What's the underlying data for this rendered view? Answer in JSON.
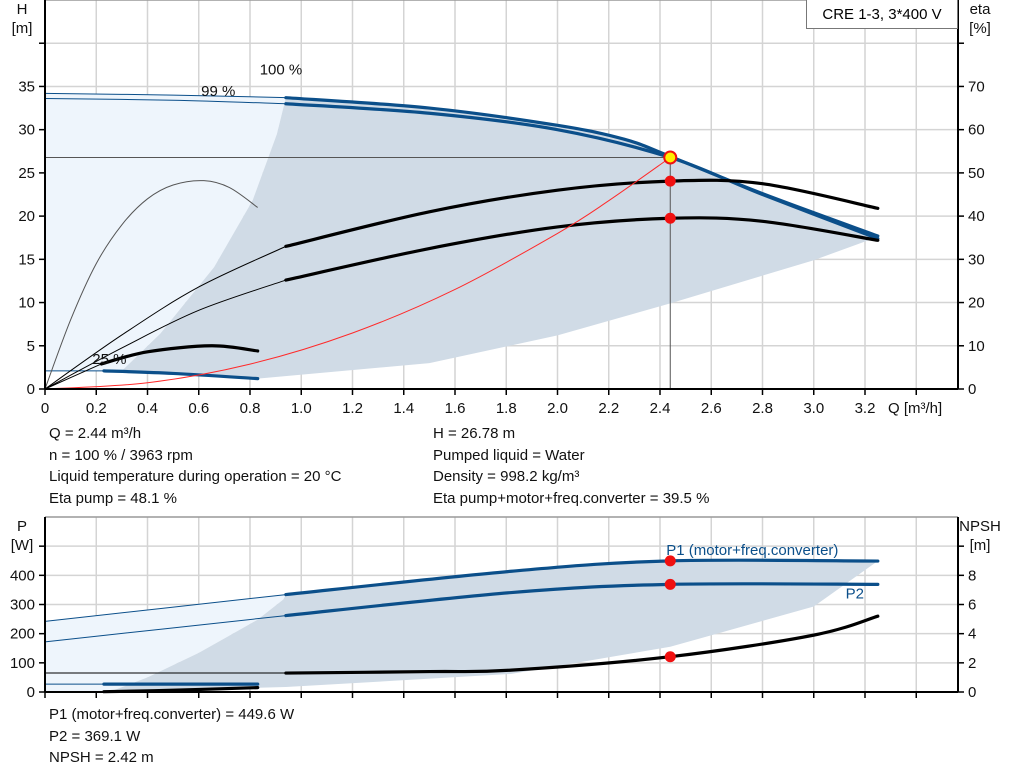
{
  "title": "CRE 1-3, 3*400 V",
  "colors": {
    "curve_blue": "#0b4f8a",
    "region_grey": "#d0dbe6",
    "region_pale": "#eef5fc",
    "system_red": "#ff2a2a",
    "point_red": "#f01010",
    "point_yellow": "#ffee00"
  },
  "info_top_left": [
    "Q = 2.44 m³/h",
    "n = 100 % / 3963 rpm",
    "Liquid temperature during operation = 20 °C",
    "Eta pump = 48.1 %"
  ],
  "info_top_right": [
    "H = 26.78 m",
    "Pumped liquid = Water",
    "Density = 998.2 kg/m³",
    "Eta pump+motor+freq.converter = 39.5 %"
  ],
  "info_bottom": [
    "P1 (motor+freq.converter) = 449.6 W",
    "P2 = 369.1 W",
    "NPSH = 2.42 m"
  ],
  "chart_data": [
    {
      "type": "line",
      "xlabel": "Q [m³/h]",
      "ylabel_left": [
        "H",
        "[m]"
      ],
      "ylabel_right": [
        "eta",
        "[%]"
      ],
      "xlim": [
        0,
        3.56
      ],
      "ylim_left": [
        0,
        45
      ],
      "ylim_right": [
        0,
        90
      ],
      "x_ticks": [
        "0",
        "0.2",
        "0.4",
        "0.6",
        "0.8",
        "1.0",
        "1.2",
        "1.4",
        "1.6",
        "1.8",
        "2.0",
        "2.2",
        "2.4",
        "2.6",
        "2.8",
        "3.0",
        "3.2"
      ],
      "y_ticks_left": [
        "0",
        "5",
        "10",
        "15",
        "20",
        "25",
        "30",
        "35"
      ],
      "y_ticks_right": [
        "0",
        "10",
        "20",
        "30",
        "40",
        "50",
        "60",
        "70"
      ],
      "grid": true,
      "annotations": [
        {
          "text": "100 %",
          "x": 0.83,
          "y": 35.2
        },
        {
          "text": "99 %",
          "x": 0.82,
          "y": 34.6
        },
        {
          "text": "25 %",
          "x": 0.2,
          "y": 2.9
        }
      ],
      "regions": [
        {
          "color": "#eef5fc",
          "points": [
            [
              0,
              34.2
            ],
            [
              0.5,
              34.0
            ],
            [
              0.94,
              33.7
            ],
            [
              0.905,
              29.5
            ],
            [
              0.81,
              21.8
            ],
            [
              0.66,
              14.1
            ],
            [
              0.45,
              6.4
            ],
            [
              0.3,
              2.1
            ],
            [
              0,
              2.1
            ]
          ]
        },
        {
          "color": "#d0dbe6",
          "points": [
            [
              0.94,
              33.7
            ],
            [
              1.5,
              32.5
            ],
            [
              2.0,
              30.5
            ],
            [
              2.26,
              28.9
            ],
            [
              2.44,
              26.9
            ],
            [
              2.8,
              22.6
            ],
            [
              3.25,
              17.6
            ],
            [
              3.0,
              14.9
            ],
            [
              2.44,
              9.9
            ],
            [
              2.0,
              6.2
            ],
            [
              1.5,
              3.0
            ],
            [
              0.83,
              1.2
            ],
            [
              0.3,
              2.1
            ],
            [
              0.45,
              6.4
            ],
            [
              0.66,
              14.1
            ],
            [
              0.81,
              21.8
            ],
            [
              0.905,
              29.5
            ]
          ]
        }
      ],
      "series": [
        {
          "axis": "left",
          "color": "#0b4f8a",
          "thin_until": 0.94,
          "points": [
            [
              0,
              34.2
            ],
            [
              0.5,
              34.0
            ],
            [
              0.94,
              33.7
            ],
            [
              1.5,
              32.5
            ],
            [
              2.0,
              30.5
            ],
            [
              2.26,
              28.9
            ],
            [
              2.44,
              26.9
            ],
            [
              2.8,
              22.6
            ],
            [
              3.25,
              17.7
            ]
          ]
        },
        {
          "axis": "left",
          "color": "#0b4f8a",
          "thin_until": 0.94,
          "points": [
            [
              0,
              33.6
            ],
            [
              0.5,
              33.4
            ],
            [
              0.94,
              33.0
            ],
            [
              1.5,
              31.9
            ],
            [
              2.0,
              30.0
            ],
            [
              2.44,
              26.78
            ],
            [
              2.8,
              22.5
            ],
            [
              3.25,
              17.4
            ]
          ]
        },
        {
          "axis": "left",
          "color": "#0b4f8a",
          "thin_until": 0.23,
          "points": [
            [
              0,
              2.1
            ],
            [
              0.23,
              2.1
            ],
            [
              0.5,
              1.8
            ],
            [
              0.83,
              1.2
            ]
          ]
        },
        {
          "axis": "right",
          "color": "#000000",
          "thin_until": 0.94,
          "points": [
            [
              0,
              0
            ],
            [
              0.3,
              12.5
            ],
            [
              0.6,
              23.6
            ],
            [
              0.94,
              33
            ],
            [
              1.5,
              41
            ],
            [
              2.0,
              46
            ],
            [
              2.44,
              48.1
            ],
            [
              2.8,
              47.5
            ],
            [
              3.25,
              41.8
            ]
          ]
        },
        {
          "axis": "right",
          "color": "#000000",
          "thin_until": 0.94,
          "points": [
            [
              0,
              0
            ],
            [
              0.3,
              9.5
            ],
            [
              0.6,
              18.2
            ],
            [
              0.94,
              25.2
            ],
            [
              1.5,
              32.5
            ],
            [
              2.0,
              37.5
            ],
            [
              2.44,
              39.5
            ],
            [
              2.8,
              38.8
            ],
            [
              3.25,
              34.4
            ]
          ]
        },
        {
          "axis": "left",
          "color": "#555555",
          "thin_until": 0.83,
          "points": [
            [
              0,
              0
            ],
            [
              0.1,
              8
            ],
            [
              0.2,
              14.5
            ],
            [
              0.3,
              19
            ],
            [
              0.4,
              22
            ],
            [
              0.5,
              23.6
            ],
            [
              0.62,
              24.1
            ],
            [
              0.72,
              23.3
            ],
            [
              0.83,
              21
            ]
          ]
        },
        {
          "axis": "left",
          "color": "#000000",
          "thin_until": 0.22,
          "points": [
            [
              0,
              0
            ],
            [
              0.22,
              2.9
            ],
            [
              0.4,
              4.3
            ],
            [
              0.65,
              5.0
            ],
            [
              0.83,
              4.4
            ]
          ]
        },
        {
          "axis": "left",
          "color": "#ff2a2a",
          "thin_until": 2.44,
          "points": [
            [
              0,
              0
            ],
            [
              0.4,
              0.72
            ],
            [
              0.8,
              2.88
            ],
            [
              1.2,
              6.48
            ],
            [
              1.6,
              11.52
            ],
            [
              2.0,
              18.0
            ],
            [
              2.2,
              21.78
            ],
            [
              2.44,
              26.78
            ]
          ]
        }
      ],
      "operating_point": {
        "Q": 2.44,
        "H": 26.78
      },
      "markers": [
        {
          "axis": "left",
          "x": 2.44,
          "y": 26.78,
          "color": "#ffee00"
        },
        {
          "axis": "right",
          "x": 2.44,
          "y": 48.1,
          "color": "#f01010"
        },
        {
          "axis": "right",
          "x": 2.44,
          "y": 39.5,
          "color": "#f01010"
        }
      ]
    },
    {
      "type": "line",
      "ylabel_left": [
        "P",
        "[W]"
      ],
      "ylabel_right": [
        "NPSH",
        "[m]"
      ],
      "xlim": [
        0,
        3.56
      ],
      "ylim_left": [
        0,
        600
      ],
      "ylim_right": [
        0,
        12
      ],
      "y_ticks_left": [
        "0",
        "100",
        "200",
        "300",
        "400"
      ],
      "y_ticks_right": [
        "0",
        "2",
        "4",
        "6",
        "8"
      ],
      "grid": true,
      "annotations": [
        {
          "text": "P1 (motor+freq.converter)",
          "x": 2.44,
          "y": 470,
          "color": "#0b4f8a"
        },
        {
          "text": "P2",
          "x": 3.14,
          "y": 320,
          "color": "#0b4f8a"
        }
      ],
      "regions": [
        {
          "color": "#eef5fc",
          "points": [
            [
              0,
              242
            ],
            [
              0.94,
              334
            ],
            [
              0.93,
              317
            ],
            [
              0.83,
              248
            ],
            [
              0.6,
              134
            ],
            [
              0.4,
              50
            ],
            [
              0.25,
              0
            ],
            [
              0,
              0
            ]
          ]
        },
        {
          "color": "#d0dbe6",
          "points": [
            [
              0.94,
              334
            ],
            [
              1.82,
              414
            ],
            [
              2.44,
              449.6
            ],
            [
              3.25,
              449
            ],
            [
              3.0,
              293
            ],
            [
              2.44,
              155
            ],
            [
              1.82,
              62
            ],
            [
              0.94,
              17
            ],
            [
              0.25,
              0
            ],
            [
              0.4,
              50
            ],
            [
              0.6,
              134
            ],
            [
              0.83,
              248
            ],
            [
              0.93,
              317
            ]
          ]
        }
      ],
      "series": [
        {
          "axis": "left",
          "color": "#0b4f8a",
          "thin_until": 0.94,
          "points": [
            [
              0,
              242
            ],
            [
              0.94,
              334
            ],
            [
              1.82,
              414
            ],
            [
              2.44,
              449.6
            ],
            [
              3.25,
              449
            ]
          ]
        },
        {
          "axis": "left",
          "color": "#0b4f8a",
          "thin_until": 0.94,
          "points": [
            [
              0,
              172
            ],
            [
              0.94,
              262
            ],
            [
              1.82,
              341
            ],
            [
              2.44,
              369.1
            ],
            [
              3.25,
              369
            ]
          ]
        },
        {
          "axis": "left",
          "color": "#0b4f8a",
          "thin_until": 0.23,
          "points": [
            [
              0,
              27
            ],
            [
              0.23,
              27
            ],
            [
              0.83,
              27
            ]
          ]
        },
        {
          "axis": "left",
          "color": "#000000",
          "thin_until": 0.23,
          "points": [
            [
              0,
              0
            ],
            [
              0.23,
              1
            ],
            [
              0.5,
              6
            ],
            [
              0.83,
              15
            ]
          ]
        },
        {
          "axis": "right",
          "color": "#000000",
          "thin_until": 0.94,
          "points": [
            [
              0,
              1.3
            ],
            [
              0.94,
              1.3
            ],
            [
              1.5,
              1.4
            ],
            [
              1.82,
              1.5
            ],
            [
              2.44,
              2.42
            ],
            [
              3.0,
              3.9
            ],
            [
              3.25,
              5.2
            ]
          ]
        }
      ],
      "markers": [
        {
          "axis": "left",
          "x": 2.44,
          "y": 449.6,
          "color": "#f01010"
        },
        {
          "axis": "left",
          "x": 2.44,
          "y": 369.1,
          "color": "#f01010"
        },
        {
          "axis": "right",
          "x": 2.44,
          "y": 2.42,
          "color": "#f01010"
        }
      ]
    }
  ]
}
